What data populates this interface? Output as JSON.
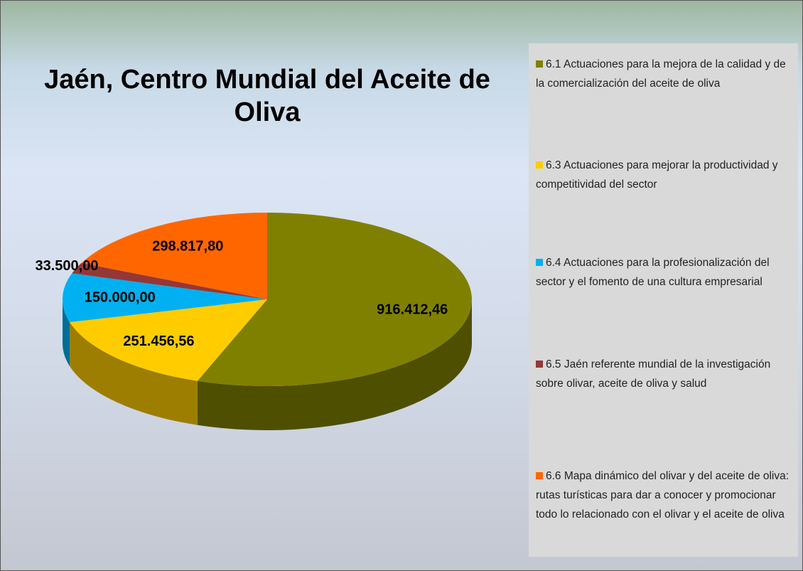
{
  "chart_data": {
    "type": "pie",
    "title": "Jaén, Centro Mundial del Aceite de Oliva",
    "categories": [
      "6.1 Actuaciones para la mejora de la calidad y de la comercialización del aceite de oliva",
      "6.3 Actuaciones para mejorar la productividad y competitividad del sector",
      "6.4 Actuaciones para la profesionalización del sector y el fomento de una cultura empresarial",
      "6.5 Jaén referente mundial de la investigación sobre olivar, aceite de oliva y salud",
      "6.6 Mapa dinámico del olivar y del aceite de oliva: rutas turísticas para dar a conocer y promocionar todo lo relacionado con el olivar y el aceite de oliva"
    ],
    "values": [
      916412.46,
      251456.56,
      150000,
      33500,
      298817.8
    ],
    "value_labels": [
      "916.412,46",
      "251.456,56",
      "150.000,00",
      "33.500,00",
      "298.817,80"
    ],
    "colors": [
      "#808000",
      "#ffcc00",
      "#00b0f0",
      "#953735",
      "#ff6600"
    ],
    "legend": "right"
  }
}
